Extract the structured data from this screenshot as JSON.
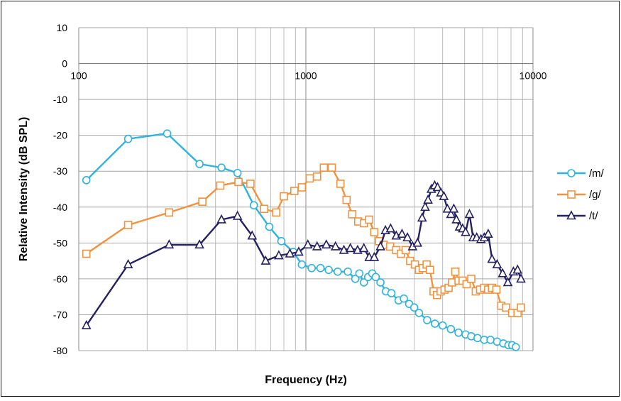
{
  "chart_data": {
    "type": "line",
    "xlabel": "Frequency (Hz)",
    "ylabel": "Relative Intensity (dB  SPL)",
    "xscale": "log",
    "xlim": [
      100,
      10000
    ],
    "ylim": [
      -80,
      10
    ],
    "x_ticks": [
      100,
      1000,
      10000
    ],
    "x_tick_labels": [
      "100",
      "1000",
      "10000"
    ],
    "y_ticks": [
      10,
      0,
      -10,
      -20,
      -30,
      -40,
      -50,
      -60,
      -70,
      -80
    ],
    "y_tick_labels": [
      "10",
      "0",
      "-10",
      "-20",
      "-30",
      "-40",
      "-50",
      "-60",
      "-70",
      "-80"
    ],
    "grid": true,
    "legend_position": "right",
    "series": [
      {
        "name": "/m/",
        "color": "#2eb2de",
        "marker": "circle",
        "points": [
          [
            108,
            -32.5
          ],
          [
            165,
            -21
          ],
          [
            245,
            -19.5
          ],
          [
            340,
            -28
          ],
          [
            425,
            -29
          ],
          [
            500,
            -30.5
          ],
          [
            590,
            -39.5
          ],
          [
            690,
            -45.5
          ],
          [
            780,
            -49.5
          ],
          [
            880,
            -52.5
          ],
          [
            960,
            -56
          ],
          [
            1060,
            -57
          ],
          [
            1160,
            -57
          ],
          [
            1260,
            -57.5
          ],
          [
            1380,
            -58
          ],
          [
            1530,
            -58
          ],
          [
            1650,
            -60
          ],
          [
            1720,
            -58.5
          ],
          [
            1800,
            -61
          ],
          [
            1880,
            -59.5
          ],
          [
            1960,
            -58.5
          ],
          [
            2030,
            -59.5
          ],
          [
            2130,
            -61
          ],
          [
            2250,
            -63.5
          ],
          [
            2380,
            -64
          ],
          [
            2560,
            -66
          ],
          [
            2700,
            -65.5
          ],
          [
            2850,
            -67
          ],
          [
            3000,
            -68
          ],
          [
            3150,
            -69.5
          ],
          [
            3420,
            -71.5
          ],
          [
            3700,
            -72.5
          ],
          [
            4000,
            -73
          ],
          [
            4350,
            -74
          ],
          [
            4700,
            -75
          ],
          [
            5050,
            -75.5
          ],
          [
            5350,
            -76
          ],
          [
            5700,
            -76.5
          ],
          [
            6100,
            -77
          ],
          [
            6500,
            -77
          ],
          [
            6950,
            -77.5
          ],
          [
            7400,
            -78
          ],
          [
            7800,
            -78.5
          ],
          [
            8100,
            -78.5
          ],
          [
            8400,
            -79
          ]
        ]
      },
      {
        "name": "/g/",
        "color": "#f0923e",
        "marker": "square",
        "points": [
          [
            108,
            -53
          ],
          [
            165,
            -45
          ],
          [
            250,
            -41.5
          ],
          [
            350,
            -38.5
          ],
          [
            420,
            -34
          ],
          [
            505,
            -33
          ],
          [
            570,
            -33.5
          ],
          [
            655,
            -40.5
          ],
          [
            740,
            -41.5
          ],
          [
            800,
            -37
          ],
          [
            890,
            -35.5
          ],
          [
            960,
            -34.5
          ],
          [
            1040,
            -32
          ],
          [
            1120,
            -31.5
          ],
          [
            1200,
            -29
          ],
          [
            1300,
            -29
          ],
          [
            1420,
            -33.5
          ],
          [
            1510,
            -38
          ],
          [
            1600,
            -42
          ],
          [
            1700,
            -44
          ],
          [
            1800,
            -44.5
          ],
          [
            1900,
            -43.5
          ],
          [
            2000,
            -47
          ],
          [
            2100,
            -49.5
          ],
          [
            2200,
            -50.5
          ],
          [
            2350,
            -51
          ],
          [
            2500,
            -52
          ],
          [
            2620,
            -53
          ],
          [
            2750,
            -52
          ],
          [
            2880,
            -55
          ],
          [
            3020,
            -56
          ],
          [
            3150,
            -57.5
          ],
          [
            3270,
            -57
          ],
          [
            3400,
            -56
          ],
          [
            3520,
            -57.5
          ],
          [
            3650,
            -63.5
          ],
          [
            3780,
            -64.5
          ],
          [
            3920,
            -63.5
          ],
          [
            4080,
            -63
          ],
          [
            4250,
            -62.5
          ],
          [
            4400,
            -61
          ],
          [
            4550,
            -58
          ],
          [
            4700,
            -60.5
          ],
          [
            4900,
            -60.5
          ],
          [
            5100,
            -61.5
          ],
          [
            5350,
            -60
          ],
          [
            5600,
            -63.5
          ],
          [
            5850,
            -63
          ],
          [
            6100,
            -62.5
          ],
          [
            6350,
            -63
          ],
          [
            6600,
            -62.5
          ],
          [
            6900,
            -63
          ],
          [
            7250,
            -67.5
          ],
          [
            7600,
            -68
          ],
          [
            8100,
            -69.5
          ],
          [
            8550,
            -69.5
          ],
          [
            8850,
            -68
          ]
        ]
      },
      {
        "name": "/t/",
        "color": "#25205f",
        "marker": "triangle",
        "points": [
          [
            108,
            -73
          ],
          [
            165,
            -56
          ],
          [
            250,
            -50.5
          ],
          [
            340,
            -50.5
          ],
          [
            425,
            -43.5
          ],
          [
            500,
            -42.5
          ],
          [
            580,
            -48
          ],
          [
            665,
            -55
          ],
          [
            760,
            -53.5
          ],
          [
            850,
            -53
          ],
          [
            930,
            -52.5
          ],
          [
            1020,
            -50.5
          ],
          [
            1120,
            -51
          ],
          [
            1230,
            -50.5
          ],
          [
            1350,
            -51
          ],
          [
            1470,
            -52
          ],
          [
            1570,
            -51.5
          ],
          [
            1690,
            -52
          ],
          [
            1800,
            -51.5
          ],
          [
            1900,
            -54
          ],
          [
            2000,
            -54
          ],
          [
            2130,
            -51
          ],
          [
            2240,
            -46.5
          ],
          [
            2360,
            -46
          ],
          [
            2500,
            -48
          ],
          [
            2650,
            -47.5
          ],
          [
            2800,
            -48.5
          ],
          [
            2950,
            -51
          ],
          [
            3100,
            -50
          ],
          [
            3250,
            -43
          ],
          [
            3350,
            -40
          ],
          [
            3450,
            -38
          ],
          [
            3570,
            -35
          ],
          [
            3690,
            -34
          ],
          [
            3800,
            -34.5
          ],
          [
            3930,
            -36
          ],
          [
            4050,
            -37
          ],
          [
            4200,
            -40.5
          ],
          [
            4350,
            -42
          ],
          [
            4480,
            -40.5
          ],
          [
            4600,
            -43.5
          ],
          [
            4750,
            -45.5
          ],
          [
            4900,
            -46
          ],
          [
            5050,
            -47
          ],
          [
            5250,
            -42
          ],
          [
            5450,
            -48.5
          ],
          [
            5650,
            -48.5
          ],
          [
            5900,
            -49
          ],
          [
            6100,
            -48.5
          ],
          [
            6350,
            -47.5
          ],
          [
            6600,
            -54.5
          ],
          [
            6950,
            -56
          ],
          [
            7350,
            -58.5
          ],
          [
            7750,
            -61
          ],
          [
            8200,
            -58
          ],
          [
            8550,
            -57.5
          ],
          [
            8850,
            -60
          ]
        ]
      }
    ]
  }
}
